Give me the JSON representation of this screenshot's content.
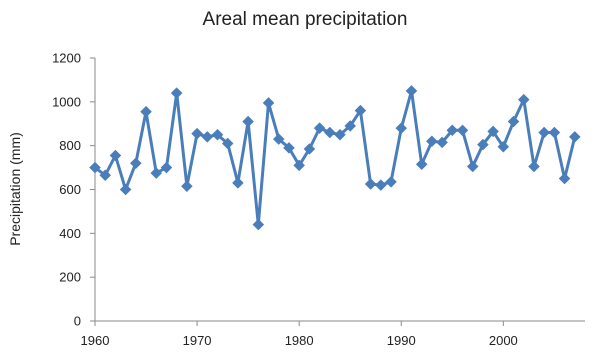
{
  "chart_data": {
    "type": "line",
    "title": "Areal mean precipitation",
    "xlabel": "",
    "ylabel": "Precipitation (mm)",
    "xlim": [
      1960,
      2008
    ],
    "ylim": [
      0,
      1200
    ],
    "x_ticks": [
      1960,
      1970,
      1980,
      1990,
      2000
    ],
    "y_ticks": [
      0,
      200,
      400,
      600,
      800,
      1000,
      1200
    ],
    "grid": false,
    "legend": "none",
    "series": [
      {
        "color": "#4a7ebb",
        "marker": "diamond",
        "x": [
          1960,
          1961,
          1962,
          1963,
          1964,
          1965,
          1966,
          1967,
          1968,
          1969,
          1970,
          1971,
          1972,
          1973,
          1974,
          1975,
          1976,
          1977,
          1978,
          1979,
          1980,
          1981,
          1982,
          1983,
          1984,
          1985,
          1986,
          1987,
          1988,
          1989,
          1990,
          1991,
          1992,
          1993,
          1994,
          1995,
          1996,
          1997,
          1998,
          1999,
          2000,
          2001,
          2002,
          2003,
          2004,
          2005,
          2006,
          2007
        ],
        "y": [
          700,
          665,
          755,
          600,
          720,
          955,
          675,
          700,
          1040,
          615,
          855,
          840,
          850,
          810,
          630,
          910,
          440,
          995,
          830,
          790,
          710,
          785,
          880,
          860,
          850,
          890,
          960,
          625,
          620,
          635,
          880,
          1050,
          715,
          820,
          815,
          870,
          870,
          705,
          805,
          865,
          795,
          910,
          1010,
          705,
          860,
          860,
          650,
          840
        ]
      }
    ]
  }
}
